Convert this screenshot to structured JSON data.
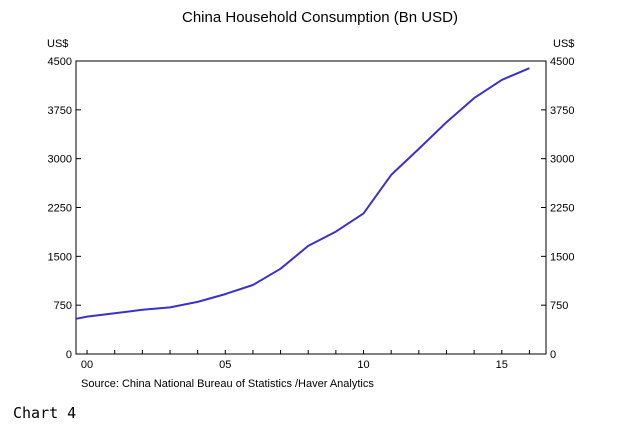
{
  "chart_data": {
    "type": "line",
    "title": "China Household Consumption (Bn USD)",
    "ylabel_left": "US$",
    "ylabel_right": "US$",
    "y_ticks": [
      0,
      750,
      1500,
      2250,
      3000,
      3750,
      4500
    ],
    "y_tick_labels": [
      "0",
      "750",
      "1500",
      "2250",
      "3000",
      "3750",
      "4500"
    ],
    "ylim": [
      0,
      4500
    ],
    "x_ticks": [
      2000,
      2005,
      2010,
      2015
    ],
    "x_tick_labels": [
      "00",
      "05",
      "10",
      "15"
    ],
    "xlim": [
      1999.6,
      2016.6
    ],
    "grid": false,
    "source": "Source:  China National Bureau of Statistics /Haver Analytics",
    "series": [
      {
        "color": "#3a32c8",
        "x": [
          1999.6,
          2000,
          2001,
          2002,
          2003,
          2004,
          2005,
          2006,
          2007,
          2008,
          2009,
          2010,
          2011,
          2012,
          2013,
          2014,
          2015,
          2016
        ],
        "values": [
          540,
          575,
          625,
          680,
          715,
          800,
          920,
          1060,
          1310,
          1660,
          1880,
          2160,
          2750,
          3150,
          3560,
          3930,
          4210,
          4390
        ]
      }
    ]
  },
  "caption": "Chart 4"
}
